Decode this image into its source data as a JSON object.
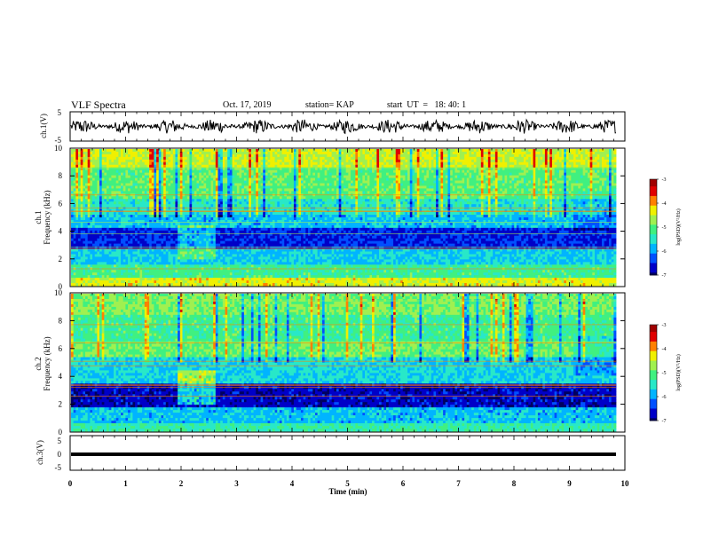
{
  "header": {
    "title": "VLF Spectra",
    "date": "Oct. 17, 2019",
    "station": "station= KAP",
    "start": "start  UT  =   18: 40: 1"
  },
  "colors": {
    "palette": [
      "#000060",
      "#0000c8",
      "#0050ff",
      "#00b4ff",
      "#28e8c8",
      "#40f080",
      "#a0f050",
      "#f0f000",
      "#ff8000",
      "#e00000",
      "#a00000",
      "#ffffff"
    ]
  },
  "chart_data": [
    {
      "type": "line",
      "ylabel": "ch.1(V)",
      "ylim": [
        -5,
        5
      ],
      "yticks": [
        "5",
        "-5"
      ],
      "xlim": [
        0,
        10
      ],
      "description_values": {
        "mean": 0,
        "amplitude": 2.5
      }
    },
    {
      "type": "heatmap",
      "ylabel_top": "ch.1",
      "ylabel": "Frequency  (kHz)",
      "ylim": [
        0,
        10
      ],
      "yticks": [
        "0",
        "2",
        "4",
        "6",
        "8",
        "10"
      ],
      "xlim": [
        0,
        10
      ],
      "colorbar": {
        "label": "log(PSD)(V²/Hz)",
        "range": [
          -7,
          -3
        ],
        "ticks": [
          "-3",
          "-4",
          "-5",
          "-6",
          "-7"
        ]
      }
    },
    {
      "type": "heatmap",
      "ylabel_top": "ch.2",
      "ylabel": "Frequency  (kHz)",
      "ylim": [
        0,
        10
      ],
      "yticks": [
        "0",
        "2",
        "4",
        "6",
        "8",
        "10"
      ],
      "xlim": [
        0,
        10
      ],
      "colorbar": {
        "label": "log(PSD)(V²/Hz)",
        "range": [
          -7,
          -3
        ],
        "ticks": [
          "-3",
          "-4",
          "-5",
          "-6",
          "-7"
        ]
      }
    },
    {
      "type": "line",
      "ylabel": "ch.3(V)",
      "ylim": [
        -5,
        5
      ],
      "yticks": [
        "5",
        "0",
        "-5"
      ],
      "xlim": [
        0,
        10
      ],
      "constant_value": 0
    }
  ],
  "xaxis": {
    "label": "Time  (min)",
    "ticks": [
      "0",
      "1",
      "2",
      "3",
      "4",
      "5",
      "6",
      "7",
      "8",
      "9",
      "10"
    ]
  }
}
